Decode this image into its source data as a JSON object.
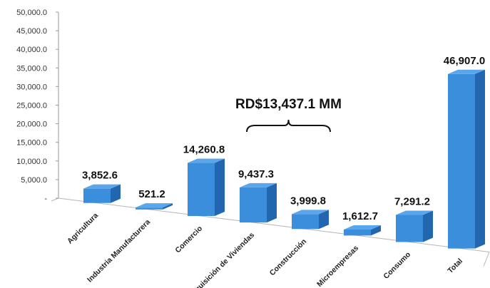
{
  "chart_data": {
    "type": "bar",
    "style": "3d-column",
    "categories": [
      "Agricultura",
      "Industria Manufacturera",
      "Comercio",
      "Adquisición de Viviendas",
      "Construcción",
      "Microempresas",
      "Consumo",
      "Total"
    ],
    "values": [
      3852.6,
      521.2,
      14260.8,
      9437.3,
      3999.8,
      1612.7,
      7291.2,
      46907.0
    ],
    "data_labels": [
      "3,852.6",
      "521.2",
      "14,260.8",
      "9,437.3",
      "3,999.8",
      "1,612.7",
      "7,291.2",
      "46,907.0"
    ],
    "y_ticks": [
      "-",
      "5,000.0",
      "10,000.0",
      "15,000.0",
      "20,000.0",
      "25,000.0",
      "30,000.0",
      "35,000.0",
      "40,000.0",
      "45,000.0",
      "50,000.0"
    ],
    "ylim": [
      0,
      50000
    ],
    "title": "",
    "xlabel": "",
    "ylabel": "",
    "grid": false,
    "legend": "none",
    "bar_color": "#3A8EDB",
    "bar_side_color": "#2266B0",
    "bar_top_color": "#5AA6EC",
    "annotation": {
      "text": "RD$13,437.1 MM",
      "spans_categories": [
        "Adquisición de Viviendas",
        "Construcción"
      ]
    }
  }
}
